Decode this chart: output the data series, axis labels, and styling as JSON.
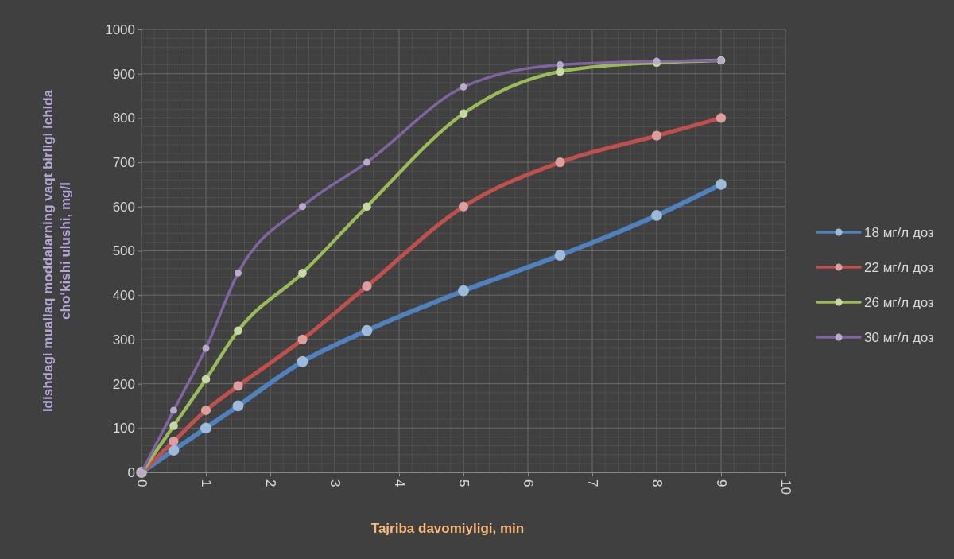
{
  "chart_data": {
    "type": "line",
    "xlabel": "Tajriba davomiyligi, min",
    "ylabel": "Idishdagi muallaq moddalarning vaqt birligi ichida\ncho‘kishi ulushi, mg/l",
    "x": [
      0,
      0.5,
      1,
      1.5,
      2.5,
      3.5,
      5,
      6.5,
      8,
      9
    ],
    "series": [
      {
        "name": "18 мг/л доз",
        "color": "#4f81bd",
        "values": [
          0,
          50,
          100,
          150,
          250,
          320,
          410,
          490,
          580,
          650
        ]
      },
      {
        "name": "22 мг/л доз",
        "color": "#c0504d",
        "values": [
          0,
          70,
          140,
          195,
          300,
          420,
          600,
          700,
          760,
          800
        ]
      },
      {
        "name": "26 мг/л доз",
        "color": "#9bbb59",
        "values": [
          0,
          105,
          210,
          320,
          450,
          600,
          810,
          905,
          925,
          930
        ]
      },
      {
        "name": "30 мг/л доз",
        "color": "#8064a2",
        "values": [
          0,
          140,
          280,
          450,
          600,
          700,
          870,
          920,
          928,
          930
        ]
      }
    ],
    "xlim": [
      0,
      10
    ],
    "xticks": [
      0,
      1,
      2,
      3,
      4,
      5,
      6,
      7,
      8,
      9,
      10
    ],
    "ylim": [
      0,
      1000
    ],
    "yticks": [
      0,
      100,
      200,
      300,
      400,
      500,
      600,
      700,
      800,
      900,
      1000
    ],
    "grid": true,
    "legend": "right",
    "marker": "circle",
    "line_style": "solid"
  }
}
